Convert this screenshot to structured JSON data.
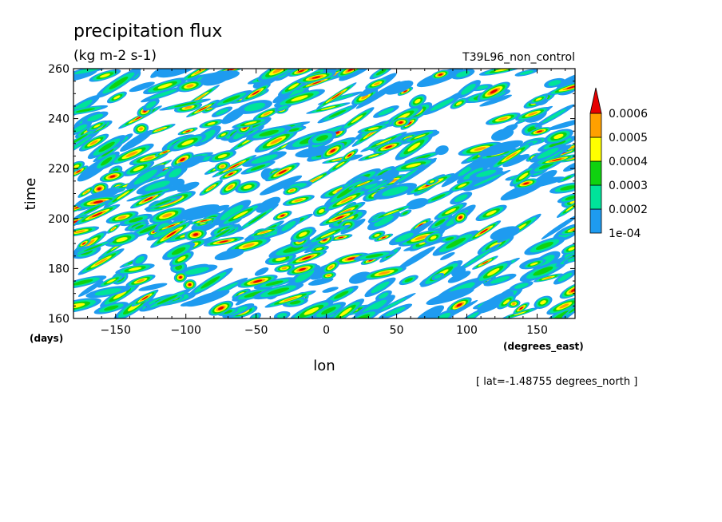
{
  "chart_data": {
    "type": "heatmap",
    "title": "precipitation flux",
    "units": "(kg m-2 s-1)",
    "run_label": "T39L96_non_control",
    "xlabel": "lon",
    "ylabel": "time",
    "x_units": "(degrees_east)",
    "y_units": "(days)",
    "footnote": "[ lat=-1.48755 degrees_north ]",
    "xlim": [
      -180,
      177
    ],
    "ylim": [
      160,
      260
    ],
    "x_ticks": [
      -150,
      -100,
      -50,
      0,
      50,
      100,
      150
    ],
    "y_ticks": [
      160,
      180,
      200,
      220,
      240,
      260
    ],
    "legend_position": "right",
    "levels": [
      {
        "label": "1e-04",
        "value": 0.0001,
        "color": "#1e9bf0"
      },
      {
        "label": "0.0002",
        "value": 0.0002,
        "color": "#00e39a"
      },
      {
        "label": "0.0003",
        "value": 0.0003,
        "color": "#0fd20f"
      },
      {
        "label": "0.0004",
        "value": 0.0004,
        "color": "#ffff00"
      },
      {
        "label": "0.0005",
        "value": 0.0005,
        "color": "#ffa000"
      },
      {
        "label": "0.0006",
        "value": 0.0006,
        "color": "#e60000"
      }
    ],
    "field_description_visible": "eastward-tilted streaks of intermittent precipitation events across all longitudes for days 160-260"
  }
}
